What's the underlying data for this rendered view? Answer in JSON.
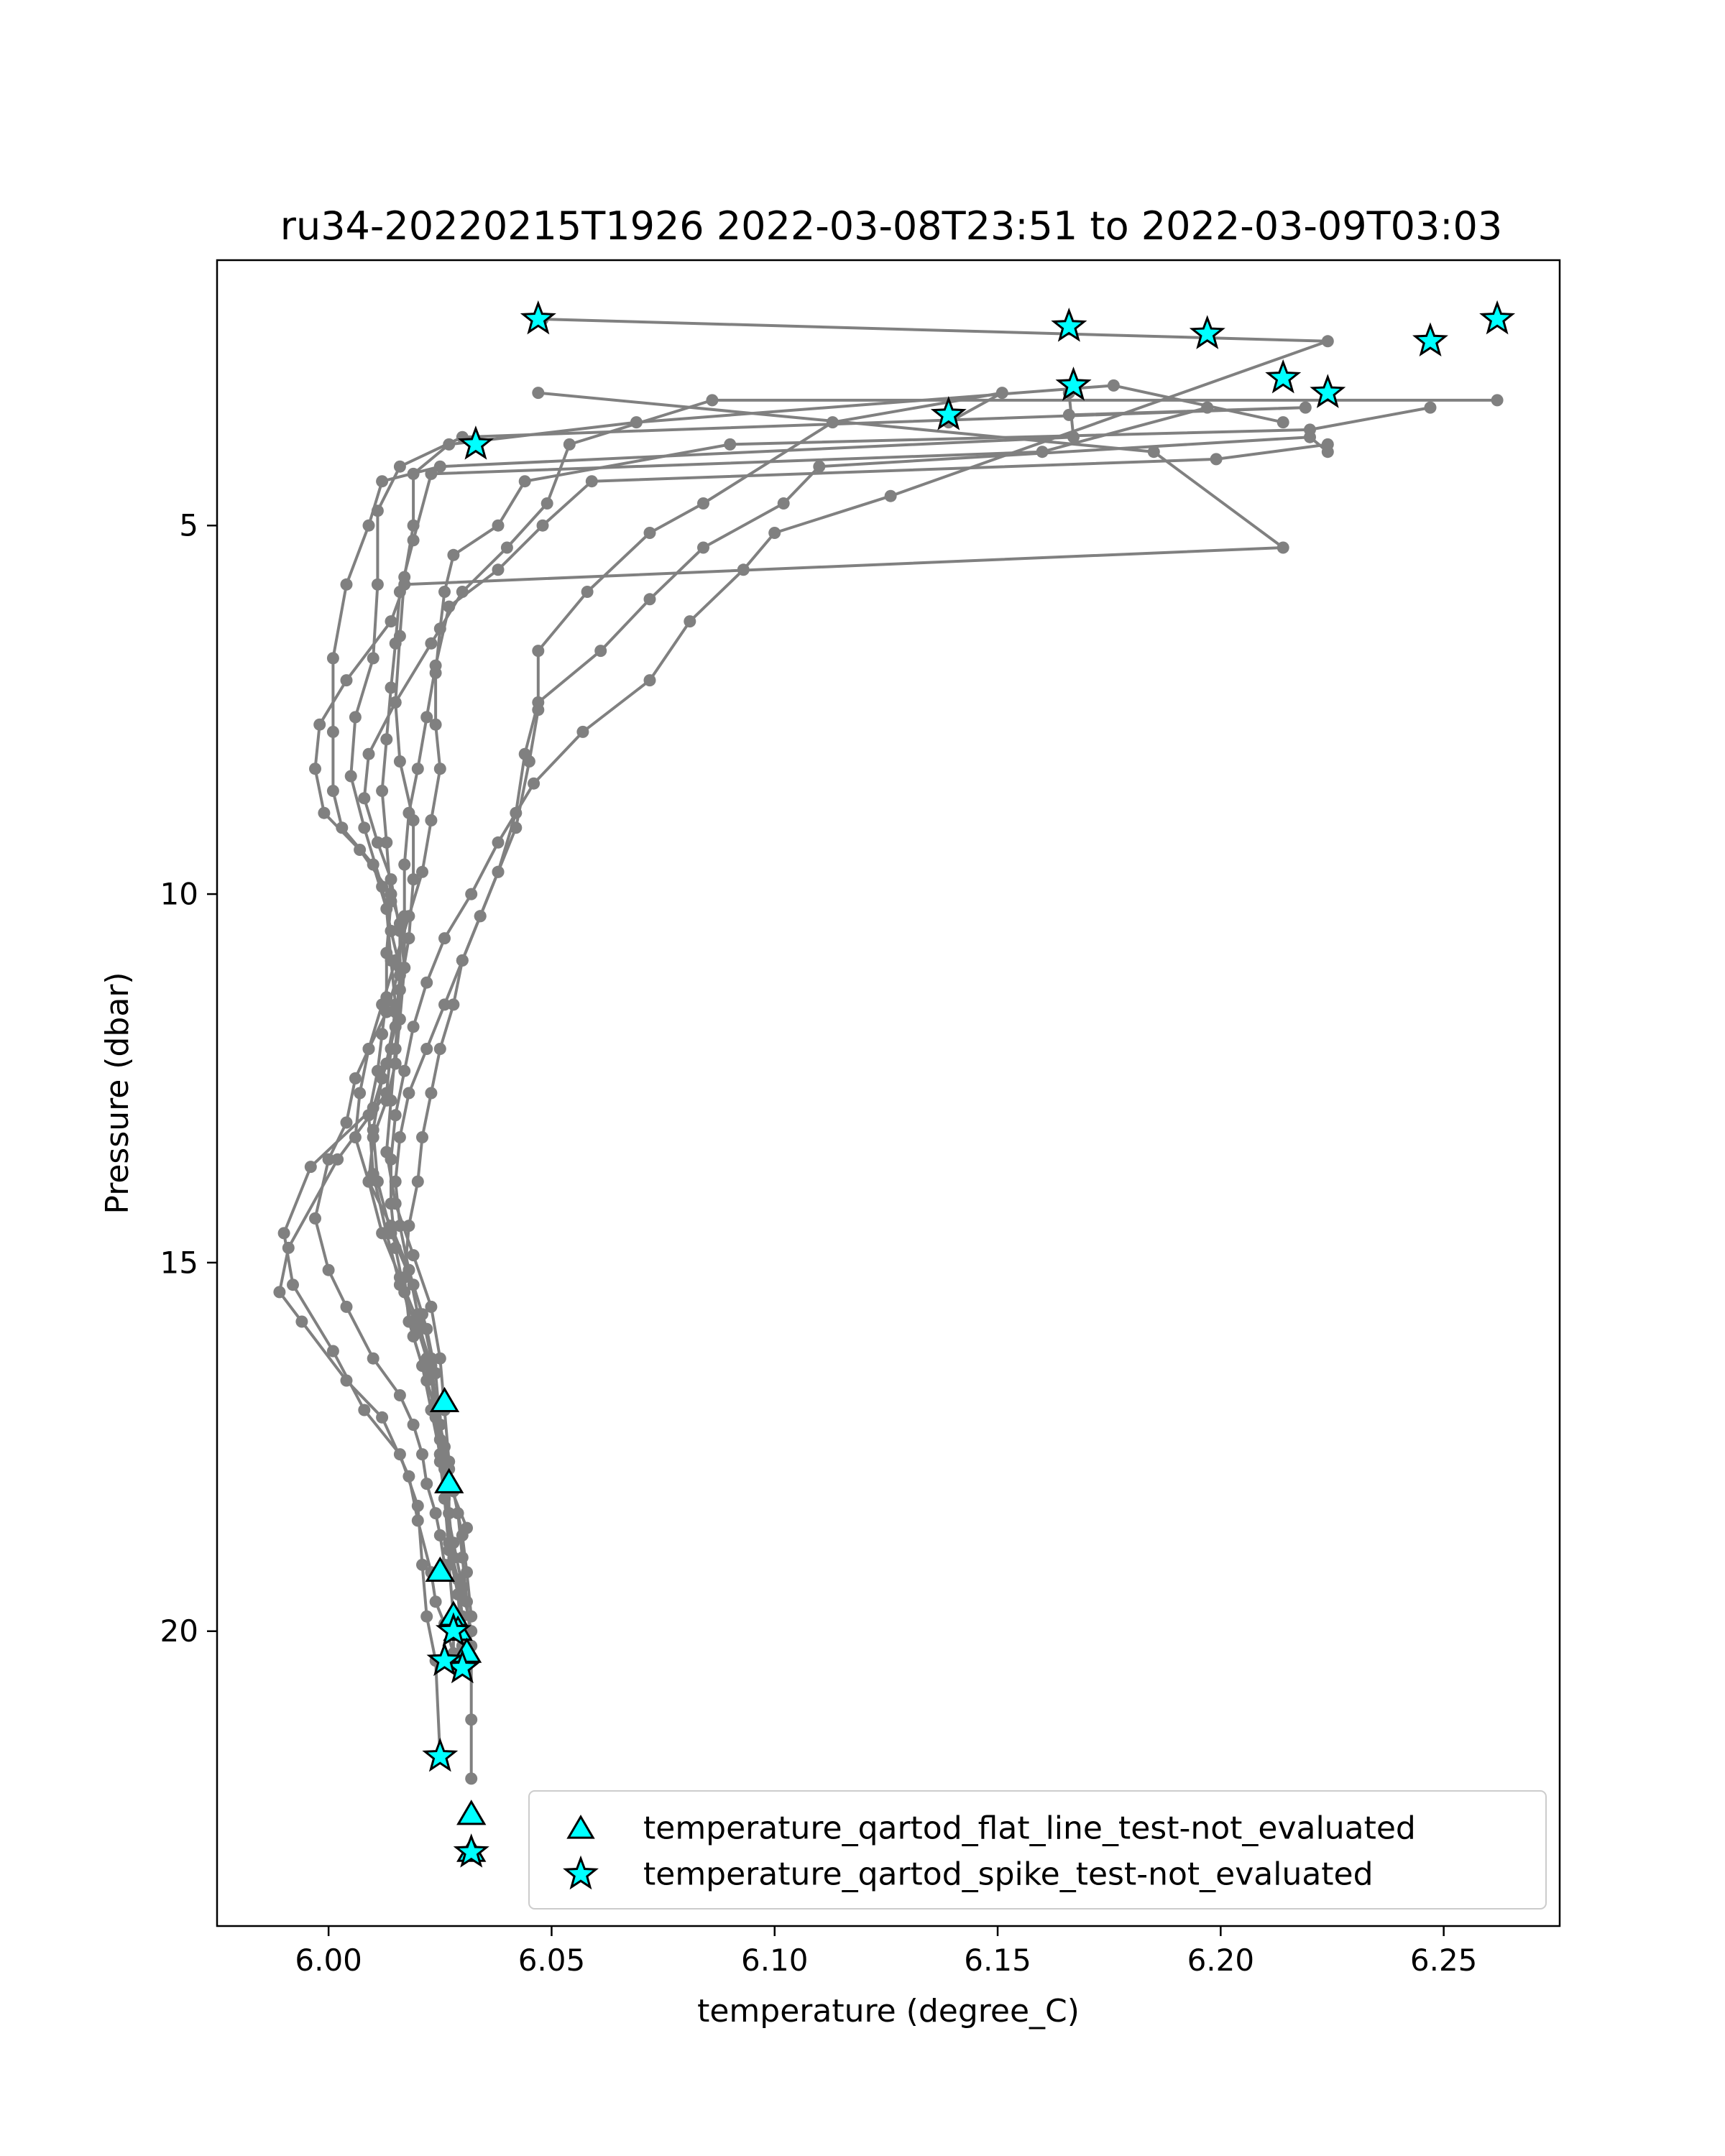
{
  "chart_data": {
    "type": "line",
    "title": "ru34-20220215T1926 2022-03-08T23:51 to 2022-03-09T03:03",
    "xlabel": "temperature (degree_C)",
    "ylabel": "Pressure (dbar)",
    "xlim": [
      5.975,
      6.276
    ],
    "ylim": [
      24.0,
      1.4
    ],
    "y_inverted": true,
    "x_ticks": [
      "6.00",
      "6.05",
      "6.10",
      "6.15",
      "6.20",
      "6.25"
    ],
    "x_tick_values": [
      6.0,
      6.05,
      6.1,
      6.15,
      6.2,
      6.25
    ],
    "y_ticks": [
      "5",
      "10",
      "15",
      "20"
    ],
    "y_tick_values": [
      5,
      10,
      15,
      20
    ],
    "grid": false,
    "line_color": "#808080",
    "marker_color": "#00ffff",
    "series": [
      {
        "x": [
          6.047,
          6.185,
          6.214,
          6.017,
          6.014,
          6.004,
          5.998,
          5.997,
          5.999,
          6.007,
          6.014,
          6.016,
          6.017,
          6.015,
          6.013,
          6.01,
          5.996,
          5.99,
          5.992,
          6.001,
          6.008,
          6.016,
          6.02,
          6.021,
          6.022,
          6.024,
          6.025
        ],
        "y": [
          3.2,
          4.0,
          5.3,
          5.8,
          6.3,
          7.1,
          7.7,
          8.3,
          8.9,
          9.4,
          10.0,
          10.4,
          11.0,
          11.6,
          12.3,
          12.9,
          13.7,
          14.6,
          15.3,
          16.2,
          17.0,
          17.6,
          18.3,
          19.1,
          19.8,
          20.4,
          21.7
        ]
      },
      {
        "x": [
          6.166,
          6.167,
          6.025,
          6.012,
          6.009,
          6.004,
          6.001,
          6.001,
          6.001,
          6.003,
          6.01,
          6.013,
          6.014,
          6.015,
          6.014,
          6.013,
          6.002,
          5.991,
          5.989,
          5.994,
          6.004,
          6.012,
          6.018,
          6.02,
          6.023,
          6.024,
          6.026,
          6.028
        ],
        "y": [
          3.2,
          3.8,
          4.2,
          4.4,
          5.0,
          5.8,
          6.8,
          7.8,
          8.6,
          9.1,
          9.6,
          10.2,
          10.9,
          11.5,
          12.1,
          12.7,
          13.6,
          14.8,
          15.4,
          15.8,
          16.6,
          17.1,
          17.9,
          18.5,
          19.2,
          19.6,
          19.9,
          20.3
        ]
      },
      {
        "x": [
          6.166,
          6.219,
          6.03,
          6.016,
          6.011,
          6.011,
          6.01,
          6.006,
          6.005,
          6.008,
          6.012,
          6.014,
          6.016,
          6.013,
          6.009,
          6.006,
          6.004,
          6.0,
          5.997,
          6.0,
          6.004,
          6.01,
          6.016,
          6.019,
          6.021,
          6.022,
          6.024,
          6.025,
          6.026
        ],
        "y": [
          3.5,
          3.4,
          3.8,
          4.2,
          4.8,
          5.8,
          6.8,
          7.6,
          8.4,
          9.1,
          9.9,
          10.5,
          11.0,
          11.6,
          12.1,
          12.5,
          13.1,
          13.6,
          14.4,
          15.1,
          15.6,
          16.3,
          16.8,
          17.2,
          17.6,
          18.0,
          18.4,
          18.7,
          19.1
        ]
      },
      {
        "x": [
          6.197,
          6.16,
          6.023,
          6.019,
          6.016,
          6.015,
          6.014,
          6.013,
          6.012,
          6.013,
          6.014,
          6.013,
          6.013,
          6.012,
          6.011,
          6.009,
          6.01,
          6.013,
          6.016,
          6.02,
          6.023,
          6.024,
          6.025,
          6.026,
          6.027,
          6.029,
          6.03,
          6.031
        ],
        "y": [
          3.4,
          4.0,
          4.3,
          5.2,
          5.9,
          6.6,
          7.2,
          7.9,
          8.6,
          9.3,
          10.1,
          10.8,
          11.4,
          11.9,
          12.4,
          13.0,
          13.8,
          14.6,
          15.3,
          15.9,
          16.5,
          17.1,
          17.7,
          18.2,
          18.8,
          19.3,
          19.8,
          20.4
        ]
      },
      {
        "x": [
          6.262,
          6.086,
          6.054,
          6.049,
          6.04,
          6.03,
          6.023,
          6.015,
          6.009,
          6.008,
          6.011,
          6.014,
          6.016,
          6.016,
          6.015,
          6.012,
          6.01,
          6.011,
          6.014,
          6.019,
          6.022,
          6.024,
          6.025,
          6.026,
          6.027,
          6.028
        ],
        "y": [
          3.3,
          3.3,
          3.9,
          4.7,
          5.3,
          5.9,
          6.6,
          7.4,
          8.1,
          8.7,
          9.3,
          9.8,
          10.5,
          11.1,
          11.8,
          12.5,
          13.2,
          13.9,
          14.6,
          15.3,
          15.9,
          16.5,
          17.2,
          17.8,
          18.4,
          19.0
        ]
      },
      {
        "x": [
          6.214,
          6.176,
          6.069,
          6.027,
          6.019,
          6.019,
          6.017,
          6.016,
          6.015,
          6.016,
          6.019,
          6.019,
          6.018,
          6.016,
          6.015,
          6.014,
          6.013,
          6.015,
          6.019,
          6.023,
          6.025,
          6.026,
          6.027,
          6.027,
          6.027,
          6.028,
          6.028
        ],
        "y": [
          3.6,
          3.1,
          3.6,
          3.9,
          4.3,
          5.0,
          5.7,
          6.5,
          7.4,
          8.2,
          9.0,
          9.8,
          10.6,
          11.3,
          12.1,
          12.8,
          13.5,
          14.2,
          14.9,
          15.6,
          16.3,
          17.0,
          17.7,
          18.4,
          19.1,
          19.8,
          20.4
        ]
      },
      {
        "x": [
          6.224,
          6.199,
          6.059,
          6.048,
          6.038,
          6.027,
          6.024,
          6.022,
          6.02,
          6.018,
          6.017,
          6.017,
          6.017,
          6.016,
          6.015,
          6.013,
          6.01,
          6.009,
          6.012,
          6.016,
          6.02,
          6.023,
          6.024,
          6.025,
          6.026,
          6.027,
          6.029,
          6.03
        ],
        "y": [
          3.9,
          4.1,
          4.4,
          5.0,
          5.6,
          6.1,
          6.9,
          7.6,
          8.3,
          8.9,
          9.6,
          10.3,
          11.0,
          11.7,
          12.3,
          12.8,
          13.3,
          13.9,
          14.6,
          15.2,
          15.8,
          16.4,
          17.0,
          17.6,
          18.2,
          18.9,
          19.5,
          20.2
        ]
      },
      {
        "x": [
          6.247,
          6.22,
          6.09,
          6.044,
          6.038,
          6.028,
          6.026,
          6.025,
          6.024,
          6.024,
          6.025,
          6.023,
          6.021,
          6.018,
          6.015,
          6.012,
          6.009,
          6.007,
          6.006,
          6.009,
          6.014,
          6.018,
          6.021,
          6.023,
          6.024,
          6.025,
          6.027,
          6.031
        ],
        "y": [
          3.4,
          3.7,
          3.9,
          4.4,
          5.0,
          5.4,
          5.9,
          6.4,
          7.0,
          7.7,
          8.3,
          9.0,
          9.7,
          10.3,
          10.9,
          11.5,
          12.1,
          12.7,
          13.3,
          13.9,
          14.5,
          15.1,
          15.7,
          16.3,
          16.9,
          17.4,
          18.0,
          18.6
        ]
      },
      {
        "x": [
          6.139,
          6.151,
          6.113,
          6.084,
          6.072,
          6.058,
          6.047,
          6.047,
          6.045,
          6.042,
          6.038,
          6.034,
          6.03,
          6.028,
          6.025,
          6.023,
          6.021,
          6.02,
          6.018,
          6.017,
          6.018,
          6.021,
          6.023,
          6.025,
          6.026,
          6.028,
          6.03,
          6.032
        ],
        "y": [
          3.6,
          3.2,
          3.6,
          4.7,
          5.1,
          5.9,
          6.7,
          7.5,
          8.2,
          9.1,
          9.7,
          10.3,
          10.9,
          11.5,
          12.1,
          12.7,
          13.3,
          13.9,
          14.5,
          15.2,
          15.8,
          16.4,
          17.0,
          17.6,
          18.2,
          18.8,
          19.4,
          20.0
        ]
      },
      {
        "x": [
          6.224,
          6.22,
          6.11,
          6.102,
          6.084,
          6.072,
          6.061,
          6.047,
          6.044,
          6.042,
          6.038,
          6.034,
          6.03,
          6.026,
          6.022,
          6.018,
          6.016,
          6.015,
          6.016,
          6.018,
          6.02,
          6.022,
          6.024,
          6.026,
          6.028,
          6.03,
          6.031,
          6.032
        ],
        "y": [
          4.0,
          3.8,
          4.2,
          4.7,
          5.3,
          6.0,
          6.7,
          7.4,
          8.1,
          8.9,
          9.7,
          10.3,
          10.9,
          11.5,
          12.1,
          12.7,
          13.3,
          13.9,
          14.5,
          15.1,
          15.7,
          16.3,
          16.9,
          17.5,
          18.1,
          18.7,
          19.2,
          19.8
        ]
      },
      {
        "x": [
          6.048,
          6.224,
          6.126,
          6.1,
          6.093,
          6.081,
          6.072,
          6.057,
          6.046,
          6.038,
          6.032,
          6.026,
          6.022,
          6.019,
          6.017,
          6.015,
          6.014,
          6.014,
          6.015,
          6.017,
          6.019,
          6.022,
          6.025,
          6.027,
          6.029,
          6.03,
          6.031,
          6.032,
          6.032,
          6.032
        ],
        "y": [
          2.2,
          2.5,
          4.6,
          5.1,
          5.6,
          6.3,
          7.1,
          7.8,
          8.5,
          9.3,
          10.0,
          10.6,
          11.2,
          11.8,
          12.4,
          13.0,
          13.6,
          14.2,
          14.8,
          15.4,
          16.0,
          16.6,
          17.2,
          17.8,
          18.4,
          19.0,
          19.6,
          20.2,
          21.2,
          22.0
        ]
      }
    ],
    "flat_line_markers": {
      "x": [
        6.026,
        6.027,
        6.025,
        6.028,
        6.029,
        6.031,
        6.032,
        6.032
      ],
      "y": [
        16.9,
        18.0,
        19.2,
        19.8,
        20.0,
        20.3,
        22.5,
        23.0
      ]
    },
    "spike_markers": {
      "x": [
        6.047,
        6.166,
        6.167,
        6.197,
        6.214,
        6.224,
        6.247,
        6.262,
        6.139,
        6.033,
        6.028,
        6.03,
        6.026,
        6.025,
        6.032
      ],
      "y": [
        2.2,
        2.3,
        3.1,
        2.4,
        3.0,
        3.2,
        2.5,
        2.2,
        3.5,
        3.9,
        20.0,
        20.5,
        20.4,
        21.7,
        23.0
      ]
    },
    "legend": {
      "placement": "lower-right",
      "entries": [
        {
          "marker": "triangle",
          "label": "temperature_qartod_flat_line_test-not_evaluated"
        },
        {
          "marker": "star",
          "label": "temperature_qartod_spike_test-not_evaluated"
        }
      ]
    }
  }
}
